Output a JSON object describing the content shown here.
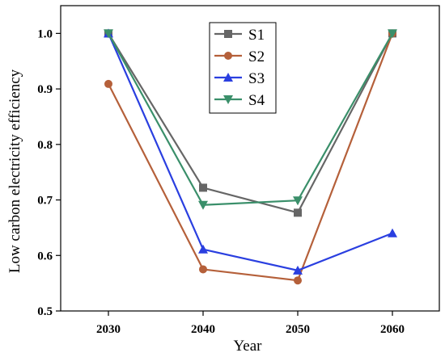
{
  "chart_data": {
    "type": "line",
    "title": "",
    "xlabel": "Year",
    "ylabel": "Low carbon electricity efficiency",
    "categories": [
      "2030",
      "2040",
      "2050",
      "2060"
    ],
    "ylim": [
      0.5,
      1.05
    ],
    "yticks": [
      "0.5",
      "0.6",
      "0.7",
      "0.8",
      "0.9",
      "1.0"
    ],
    "legend_position": "top-center",
    "grid": false,
    "series": [
      {
        "name": "S1",
        "color": "#666666",
        "marker": "square",
        "values": [
          1.0,
          0.722,
          0.677,
          1.0
        ]
      },
      {
        "name": "S2",
        "color": "#b5603a",
        "marker": "circle",
        "values": [
          0.909,
          0.575,
          0.555,
          1.0
        ]
      },
      {
        "name": "S3",
        "color": "#2a3fe0",
        "marker": "triangle-up",
        "values": [
          1.0,
          0.611,
          0.573,
          0.64
        ]
      },
      {
        "name": "S4",
        "color": "#3a8f6a",
        "marker": "triangle-down",
        "values": [
          1.0,
          0.691,
          0.699,
          1.0
        ]
      }
    ]
  }
}
